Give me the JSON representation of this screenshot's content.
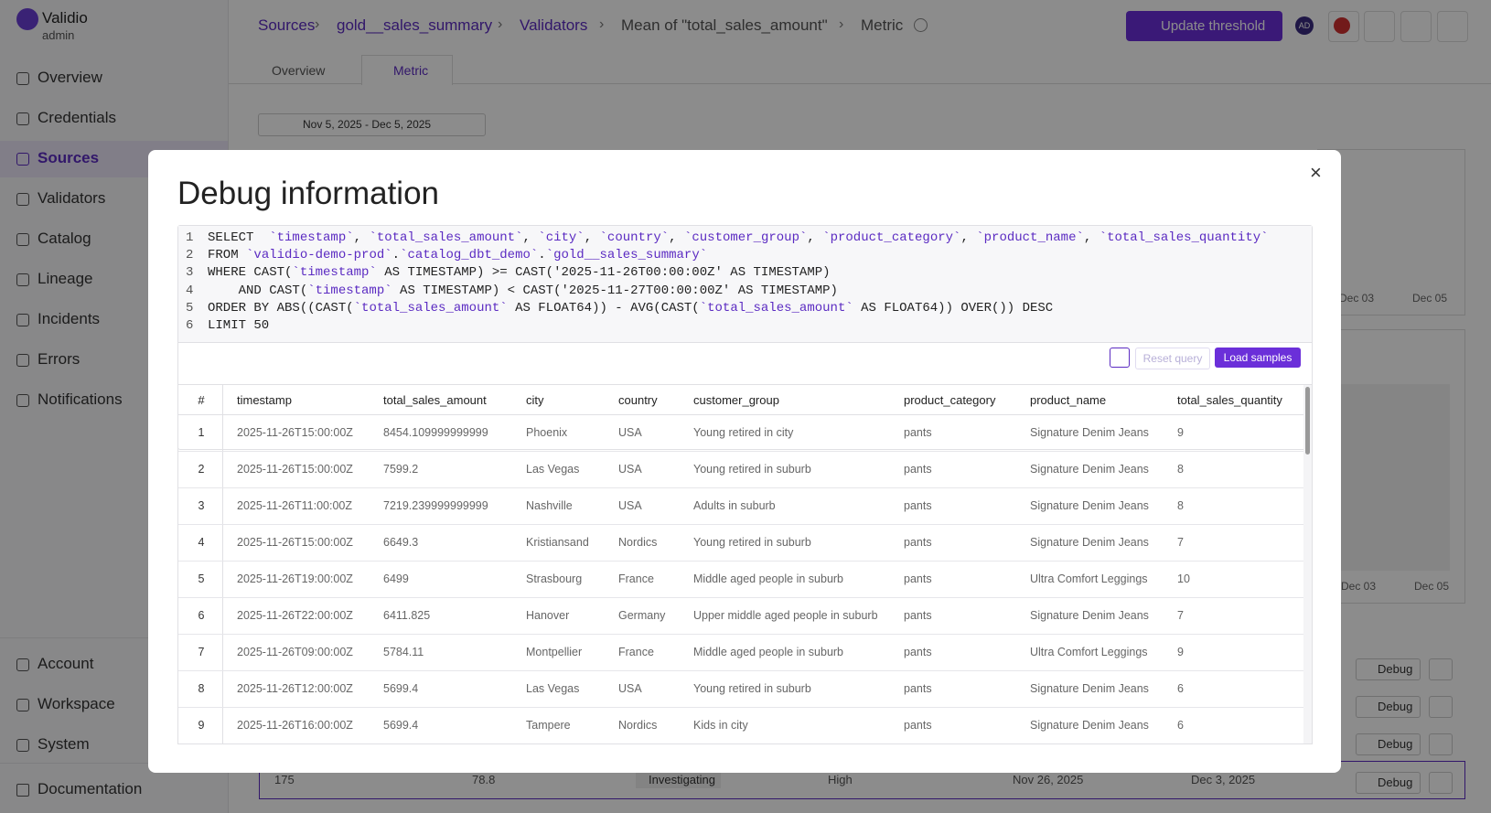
{
  "sidebar": {
    "brand": "Validio",
    "role": "admin",
    "nav": [
      "Overview",
      "Credentials",
      "Sources",
      "Validators",
      "Catalog",
      "Lineage",
      "Incidents",
      "Errors",
      "Notifications"
    ],
    "active": "Sources",
    "bottom": [
      "Account",
      "Workspace",
      "System"
    ],
    "documentation": "Documentation"
  },
  "header": {
    "breadcrumb": [
      "Sources",
      "gold__sales_summary",
      "Validators",
      "Mean of \"total_sales_amount\"",
      "Metric"
    ],
    "update_button": "Update threshold",
    "avatar": "AD"
  },
  "tabs": [
    "Overview",
    "Metric"
  ],
  "date_range": "Nov 5, 2025 - Dec 5, 2025",
  "background": {
    "chart1_ticks": [
      "Dec 03",
      "Dec 05"
    ],
    "chart2_ticks": [
      "Dec 03",
      "Dec 05"
    ],
    "debug_button": "Debug",
    "incident": {
      "id": "175",
      "value": "78.8",
      "status": "Investigating",
      "severity": "High",
      "start": "Nov 26, 2025",
      "end": "Dec 3, 2025"
    }
  },
  "modal": {
    "title": "Debug information",
    "code": [
      {
        "n": "1",
        "text": "SELECT  `timestamp`, `total_sales_amount`, `city`, `country`, `customer_group`, `product_category`, `product_name`, `total_sales_quantity`"
      },
      {
        "n": "2",
        "text": "FROM `validio-demo-prod`.`catalog_dbt_demo`.`gold__sales_summary`"
      },
      {
        "n": "3",
        "text": "WHERE CAST(`timestamp` AS TIMESTAMP) >= CAST('2025-11-26T00:00:00Z' AS TIMESTAMP)"
      },
      {
        "n": "4",
        "text": "    AND CAST(`timestamp` AS TIMESTAMP) < CAST('2025-11-27T00:00:00Z' AS TIMESTAMP)"
      },
      {
        "n": "5",
        "text": "ORDER BY ABS((CAST(`total_sales_amount` AS FLOAT64)) - AVG(CAST(`total_sales_amount` AS FLOAT64)) OVER()) DESC"
      },
      {
        "n": "6",
        "text": "LIMIT 50"
      }
    ],
    "reset_button": "Reset query",
    "load_button": "Load samples",
    "table": {
      "columns": [
        "#",
        "timestamp",
        "total_sales_amount",
        "city",
        "country",
        "customer_group",
        "product_category",
        "product_name",
        "total_sales_quantity"
      ],
      "rows": [
        [
          "1",
          "2025-11-26T15:00:00Z",
          "8454.109999999999",
          "Phoenix",
          "USA",
          "Young retired in city",
          "pants",
          "Signature Denim Jeans",
          "9"
        ],
        [
          "2",
          "2025-11-26T15:00:00Z",
          "7599.2",
          "Las Vegas",
          "USA",
          "Young retired in suburb",
          "pants",
          "Signature Denim Jeans",
          "8"
        ],
        [
          "3",
          "2025-11-26T11:00:00Z",
          "7219.239999999999",
          "Nashville",
          "USA",
          "Adults in suburb",
          "pants",
          "Signature Denim Jeans",
          "8"
        ],
        [
          "4",
          "2025-11-26T15:00:00Z",
          "6649.3",
          "Kristiansand",
          "Nordics",
          "Young retired in suburb",
          "pants",
          "Signature Denim Jeans",
          "7"
        ],
        [
          "5",
          "2025-11-26T19:00:00Z",
          "6499",
          "Strasbourg",
          "France",
          "Middle aged people in suburb",
          "pants",
          "Ultra Comfort Leggings",
          "10"
        ],
        [
          "6",
          "2025-11-26T22:00:00Z",
          "6411.825",
          "Hanover",
          "Germany",
          "Upper middle aged people in suburb",
          "pants",
          "Signature Denim Jeans",
          "7"
        ],
        [
          "7",
          "2025-11-26T09:00:00Z",
          "5784.11",
          "Montpellier",
          "France",
          "Middle aged people in suburb",
          "pants",
          "Ultra Comfort Leggings",
          "9"
        ],
        [
          "8",
          "2025-11-26T12:00:00Z",
          "5699.4",
          "Las Vegas",
          "USA",
          "Young retired in suburb",
          "pants",
          "Signature Denim Jeans",
          "6"
        ],
        [
          "9",
          "2025-11-26T16:00:00Z",
          "5699.4",
          "Tampere",
          "Nordics",
          "Kids in city",
          "pants",
          "Signature Denim Jeans",
          "6"
        ]
      ]
    }
  }
}
